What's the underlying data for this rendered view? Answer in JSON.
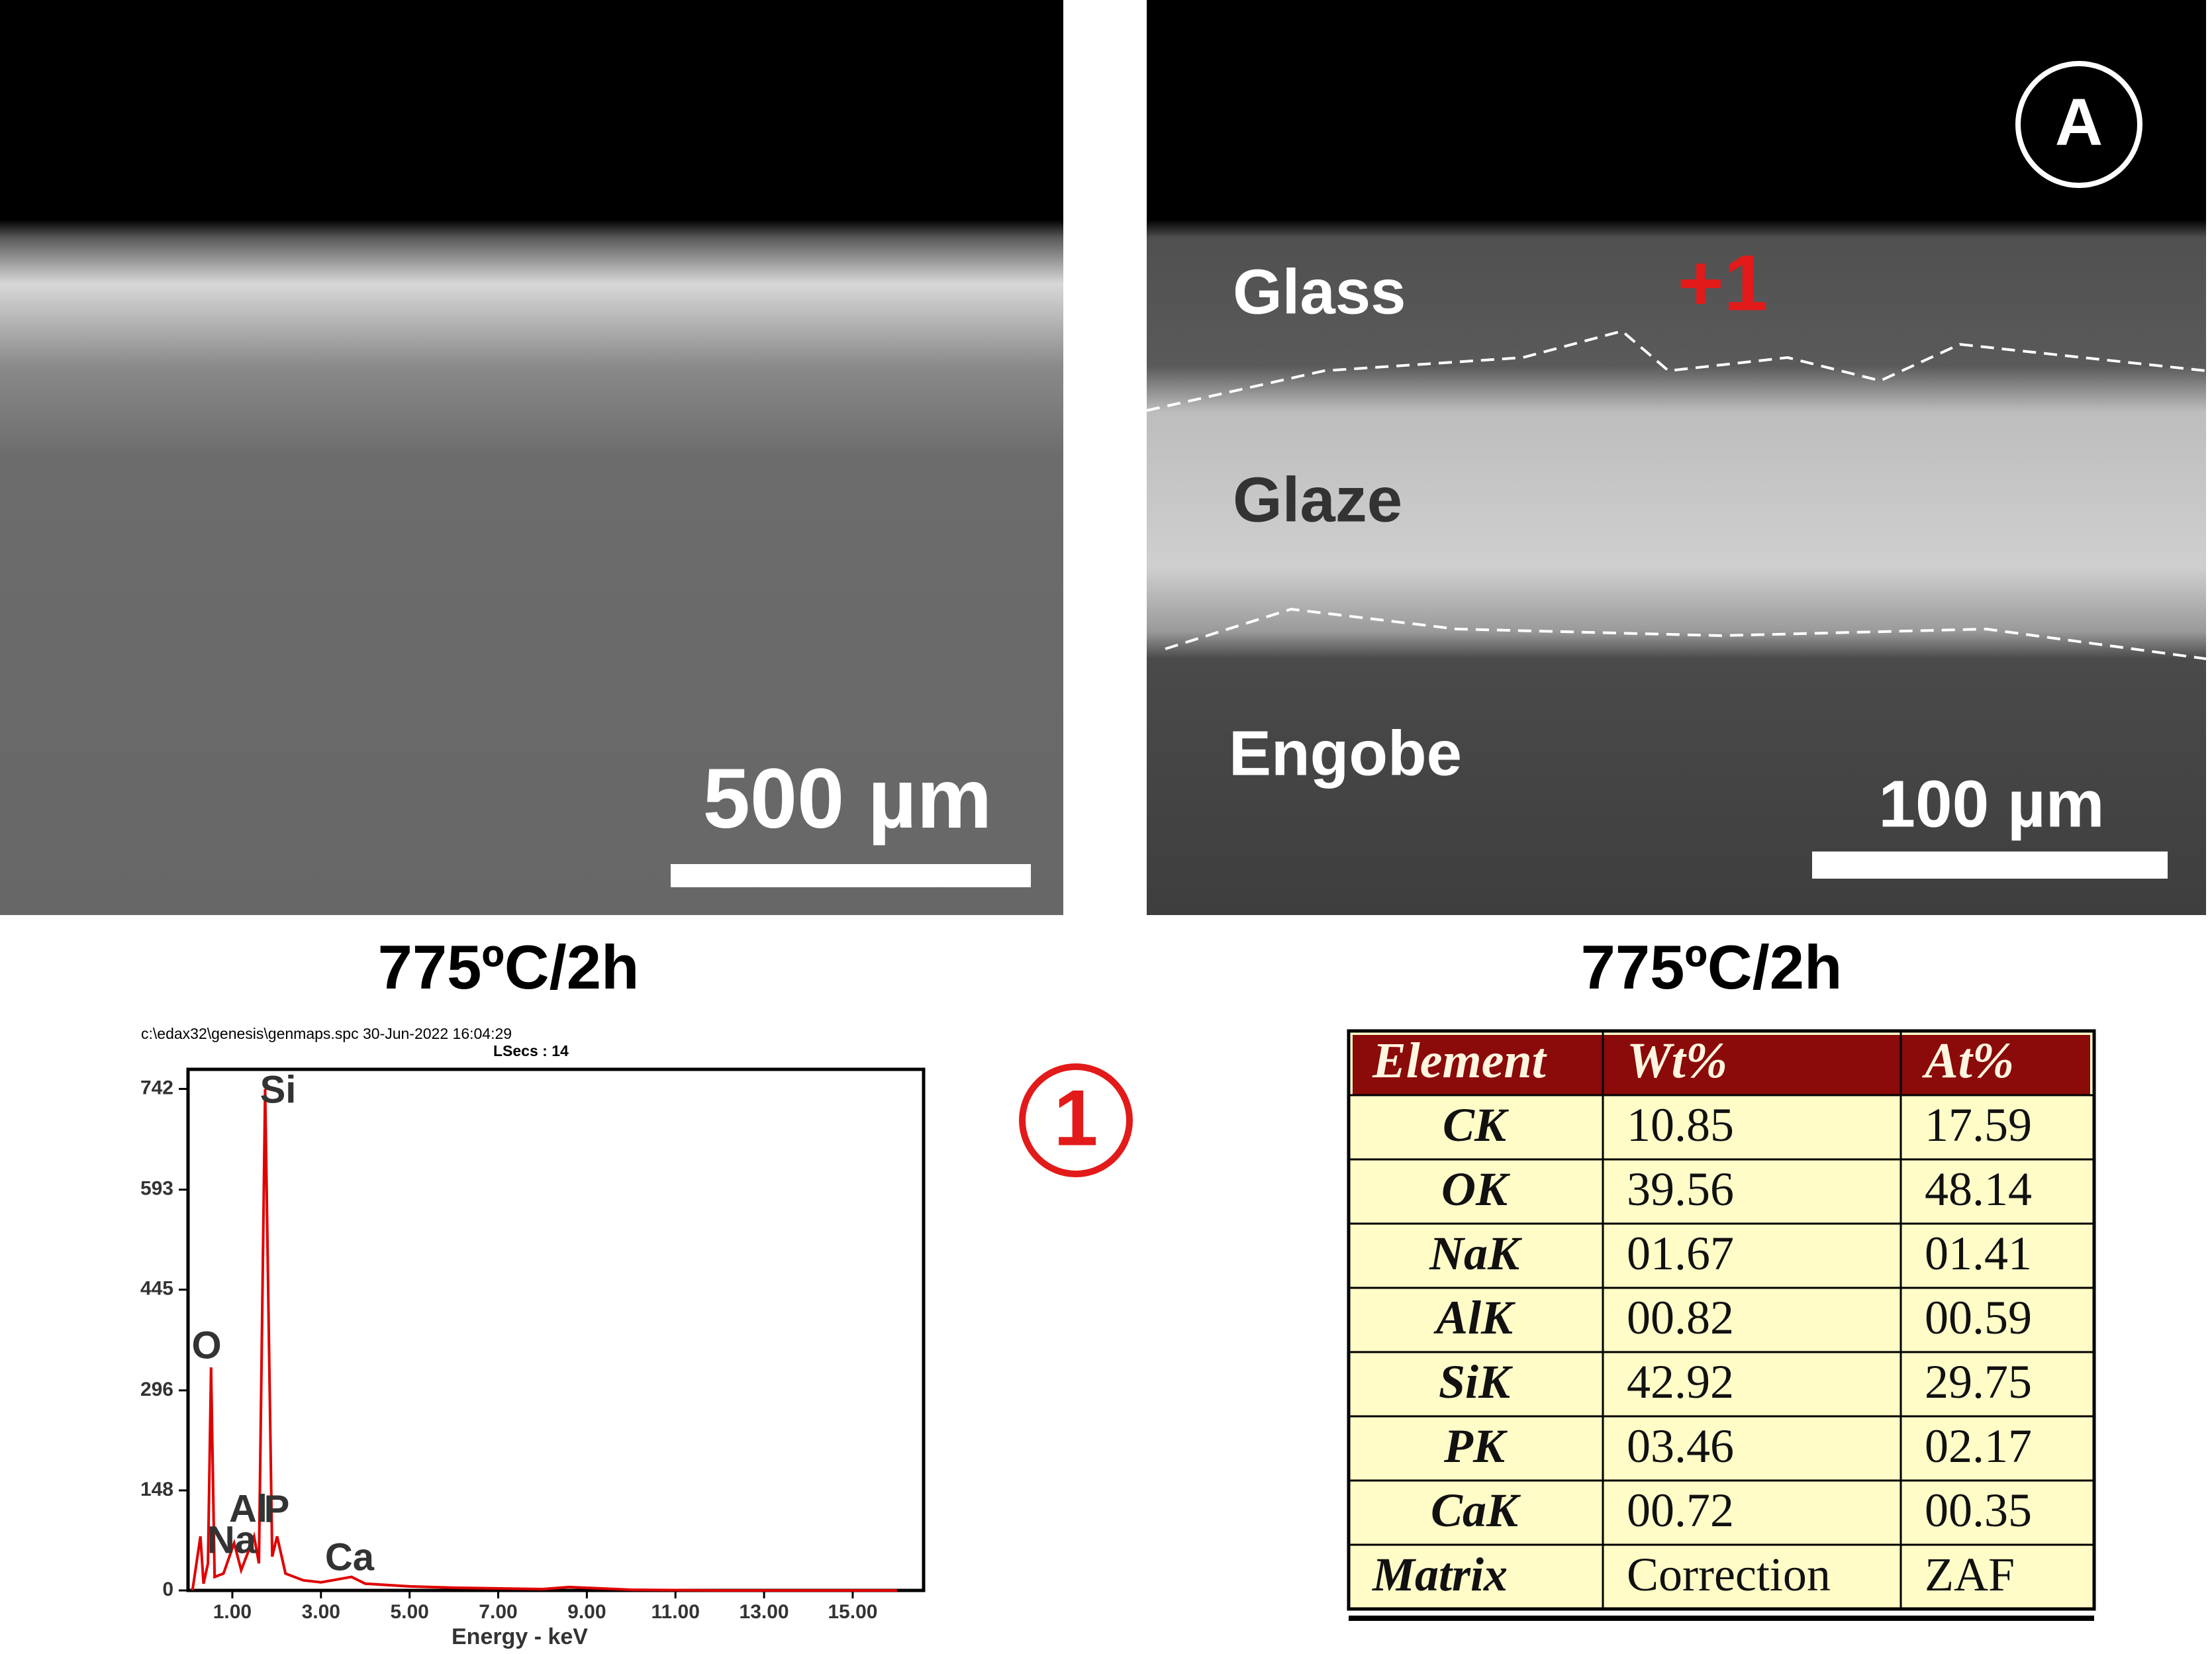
{
  "panels": [
    {
      "scale_bar": "500 µm",
      "caption": "775ºC/2h"
    },
    {
      "label": "A",
      "regions": [
        "Glass",
        "Glaze",
        "Engobe"
      ],
      "point": "+1",
      "scale_bar": "100 µm",
      "caption": "775ºC/2h"
    }
  ],
  "chart_data": {
    "type": "line",
    "file": "c:\\edax32\\genesis\\genmaps.spc  30-Jun-2022 16:04:29",
    "lsecs": "LSecs :  14",
    "xlabel": "Energy - keV",
    "color": "#e00000",
    "x": [
      0.1,
      0.28,
      0.35,
      0.45,
      0.52,
      0.6,
      0.8,
      1.04,
      1.2,
      1.49,
      1.6,
      1.74,
      1.9,
      2.01,
      2.2,
      2.6,
      3.0,
      3.69,
      4.0,
      5.0,
      6.0,
      8.0,
      8.6,
      10,
      12,
      16
    ],
    "values": [
      0,
      80,
      10,
      40,
      330,
      20,
      25,
      70,
      30,
      80,
      40,
      742,
      50,
      80,
      25,
      15,
      12,
      20,
      10,
      6,
      4,
      2,
      5,
      1,
      0,
      0
    ],
    "peaks": [
      "O",
      "Na",
      "Al",
      "Si",
      "P",
      "Ca"
    ],
    "xlim": [
      0,
      16.6
    ],
    "ylim": [
      0,
      771
    ],
    "xticks": [
      {
        "value": 1,
        "label": "1.00"
      },
      {
        "value": 3,
        "label": "3.00"
      },
      {
        "value": 5,
        "label": "5.00"
      },
      {
        "value": 7,
        "label": "7.00"
      },
      {
        "value": 9,
        "label": "9.00"
      },
      {
        "value": 11,
        "label": "11.00"
      },
      {
        "value": 13,
        "label": "13.00"
      },
      {
        "value": 15,
        "label": "15.00"
      }
    ],
    "yticks": [
      0,
      148,
      296,
      445,
      593,
      742
    ],
    "marker": "1"
  },
  "table": {
    "header": [
      "Element",
      "Wt%",
      "At%"
    ],
    "rows": [
      [
        "CK",
        "10.85",
        "17.59"
      ],
      [
        "OK",
        "39.56",
        "48.14"
      ],
      [
        "NaK",
        "01.67",
        "01.41"
      ],
      [
        "AlK",
        "00.82",
        "00.59"
      ],
      [
        "SiK",
        "42.92",
        "29.75"
      ],
      [
        "PK",
        "03.46",
        "02.17"
      ],
      [
        "CaK",
        "00.72",
        "00.35"
      ],
      [
        "Matrix",
        "Correction",
        "ZAF"
      ]
    ]
  }
}
